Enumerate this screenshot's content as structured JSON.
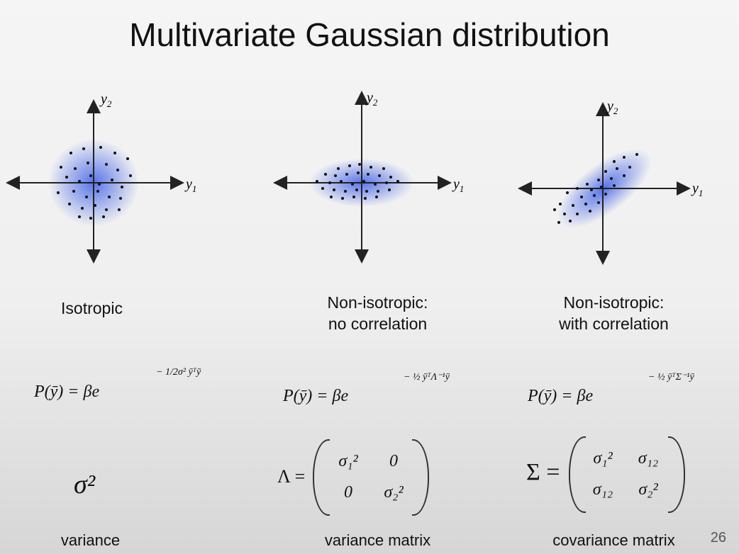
{
  "slide": {
    "title": "Multivariate Gaussian distribution",
    "page_number": "26"
  },
  "axes": {
    "x_label": "y",
    "x_sub": "1",
    "y_label": "y",
    "y_sub": "2"
  },
  "columns": [
    {
      "caption_line1": "Isotropic",
      "caption_line2": "",
      "formula_lhs": "P(ȳ) = βe",
      "formula_exp": "− 1/2σ² ȳᵀȳ",
      "matrix_symbol": "σ²",
      "footer": "variance"
    },
    {
      "caption_line1": "Non-isotropic:",
      "caption_line2": "no correlation",
      "formula_lhs": "P(ȳ) = βe",
      "formula_exp": "− ½ ȳᵀΛ⁻¹ȳ",
      "matrix_symbol": "Λ =",
      "matrix": {
        "a": "σ₁²",
        "b": "0",
        "c": "0",
        "d": "σ₂²"
      },
      "footer": "variance matrix"
    },
    {
      "caption_line1": "Non-isotropic:",
      "caption_line2": "with correlation",
      "formula_lhs": "P(ȳ) = βe",
      "formula_exp": "− ½ ȳᵀΣ⁻¹ȳ",
      "matrix_symbol": "Σ =",
      "matrix": {
        "a": "σ₁²",
        "b": "σ₁₂",
        "c": "σ₁₂",
        "d": "σ₂²"
      },
      "footer": "covariance matrix"
    }
  ],
  "colors": {
    "blob": "#3d5ee8",
    "axis": "#222222"
  }
}
